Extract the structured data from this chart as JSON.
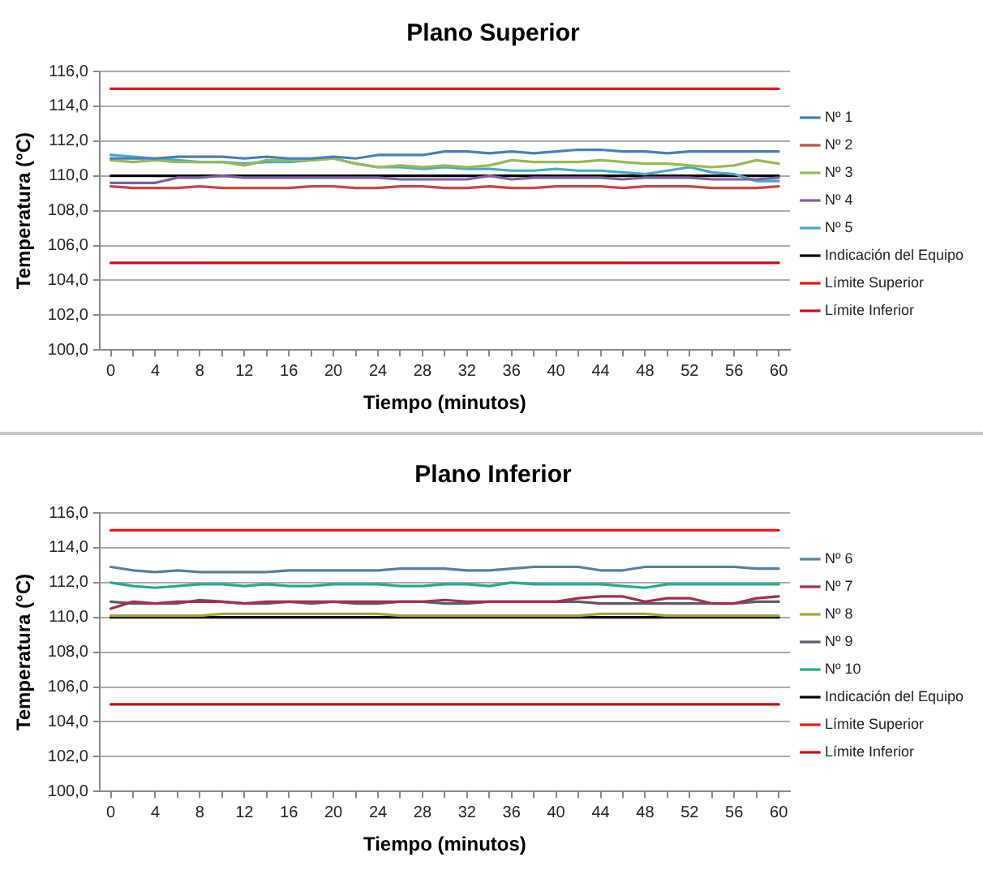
{
  "chart_data": [
    {
      "type": "line",
      "title": "Plano Superior",
      "xlabel": "Tiempo (minutos)",
      "ylabel": "Temperatura (°C)",
      "x": [
        0,
        2,
        4,
        6,
        8,
        10,
        12,
        14,
        16,
        18,
        20,
        22,
        24,
        26,
        28,
        30,
        32,
        34,
        36,
        38,
        40,
        42,
        44,
        46,
        48,
        50,
        52,
        54,
        56,
        58,
        60
      ],
      "xlim": [
        -1,
        61
      ],
      "xticks": [
        0,
        {
          "value": 2,
          "label": null
        },
        4,
        {
          "value": 6,
          "label": null
        },
        8,
        {
          "value": 10,
          "label": null
        },
        12,
        {
          "value": 14,
          "label": null
        },
        16,
        {
          "value": 18,
          "label": null
        },
        20,
        {
          "value": 22,
          "label": null
        },
        24,
        {
          "value": 26,
          "label": null
        },
        28,
        {
          "value": 30,
          "label": null
        },
        32,
        {
          "value": 34,
          "label": null
        },
        36,
        {
          "value": 38,
          "label": null
        },
        40,
        {
          "value": 42,
          "label": null
        },
        44,
        {
          "value": 46,
          "label": null
        },
        48,
        {
          "value": 50,
          "label": null
        },
        52,
        {
          "value": 54,
          "label": null
        },
        56,
        {
          "value": 58,
          "label": null
        },
        60
      ],
      "ylim": [
        100,
        116
      ],
      "yticks": [
        {
          "value": 100,
          "label": "100,0"
        },
        {
          "value": 102,
          "label": "102,0"
        },
        {
          "value": 104,
          "label": "104,0"
        },
        {
          "value": 106,
          "label": "106,0"
        },
        {
          "value": 108,
          "label": "108,0"
        },
        {
          "value": 110,
          "label": "110,0"
        },
        {
          "value": 112,
          "label": "112,0"
        },
        {
          "value": 114,
          "label": "114,0"
        },
        {
          "value": 116,
          "label": "116,0"
        }
      ],
      "grid": "y",
      "legend": "right",
      "marker": "none",
      "line_style": "solid",
      "series": [
        {
          "name": "Nº 1",
          "color": "#4a7ebb",
          "values": [
            111.0,
            111.0,
            111.0,
            111.1,
            111.1,
            111.1,
            111.0,
            111.1,
            111.0,
            111.0,
            111.1,
            111.0,
            111.2,
            111.2,
            111.2,
            111.4,
            111.4,
            111.3,
            111.4,
            111.3,
            111.4,
            111.5,
            111.5,
            111.4,
            111.4,
            111.3,
            111.4,
            111.4,
            111.4,
            111.4,
            111.4
          ]
        },
        {
          "name": "Nº 2",
          "color": "#be4b48",
          "values": [
            109.4,
            109.3,
            109.3,
            109.3,
            109.4,
            109.3,
            109.3,
            109.3,
            109.3,
            109.4,
            109.4,
            109.3,
            109.3,
            109.4,
            109.4,
            109.3,
            109.3,
            109.4,
            109.3,
            109.3,
            109.4,
            109.4,
            109.4,
            109.3,
            109.4,
            109.4,
            109.4,
            109.3,
            109.3,
            109.3,
            109.4
          ]
        },
        {
          "name": "Nº 3",
          "color": "#98b954",
          "values": [
            110.9,
            110.8,
            110.9,
            110.8,
            110.8,
            110.8,
            110.6,
            110.9,
            110.9,
            110.9,
            111.0,
            110.7,
            110.5,
            110.6,
            110.5,
            110.6,
            110.5,
            110.6,
            110.9,
            110.8,
            110.8,
            110.8,
            110.9,
            110.8,
            110.7,
            110.7,
            110.6,
            110.5,
            110.6,
            110.9,
            110.7
          ]
        },
        {
          "name": "Nº 4",
          "color": "#7d60a0",
          "values": [
            109.6,
            109.6,
            109.6,
            109.9,
            109.9,
            110.0,
            109.9,
            109.9,
            109.9,
            109.9,
            109.9,
            109.9,
            109.9,
            109.8,
            109.8,
            109.8,
            109.8,
            110.0,
            109.8,
            109.9,
            109.9,
            109.9,
            109.9,
            109.8,
            109.9,
            109.9,
            109.9,
            109.8,
            109.8,
            109.8,
            109.9
          ]
        },
        {
          "name": "Nº 5",
          "color": "#46aac5",
          "values": [
            111.2,
            111.1,
            111.0,
            110.9,
            110.8,
            110.8,
            110.7,
            110.8,
            110.8,
            110.9,
            111.0,
            110.7,
            110.5,
            110.5,
            110.4,
            110.5,
            110.4,
            110.4,
            110.3,
            110.3,
            110.4,
            110.3,
            110.3,
            110.2,
            110.1,
            110.3,
            110.5,
            110.2,
            110.1,
            109.7,
            109.7
          ]
        },
        {
          "name": "Indicación del Equipo",
          "color": "#000000",
          "values": [
            110,
            110,
            110,
            110,
            110,
            110,
            110,
            110,
            110,
            110,
            110,
            110,
            110,
            110,
            110,
            110,
            110,
            110,
            110,
            110,
            110,
            110,
            110,
            110,
            110,
            110,
            110,
            110,
            110,
            110,
            110
          ]
        },
        {
          "name": "Límite Superior",
          "color": "#e31a1c",
          "values": [
            115,
            115,
            115,
            115,
            115,
            115,
            115,
            115,
            115,
            115,
            115,
            115,
            115,
            115,
            115,
            115,
            115,
            115,
            115,
            115,
            115,
            115,
            115,
            115,
            115,
            115,
            115,
            115,
            115,
            115,
            115
          ]
        },
        {
          "name": "Límite Inferior",
          "color": "#c0101a",
          "values": [
            105,
            105,
            105,
            105,
            105,
            105,
            105,
            105,
            105,
            105,
            105,
            105,
            105,
            105,
            105,
            105,
            105,
            105,
            105,
            105,
            105,
            105,
            105,
            105,
            105,
            105,
            105,
            105,
            105,
            105,
            105
          ]
        }
      ]
    },
    {
      "type": "line",
      "title": "Plano Inferior",
      "xlabel": "Tiempo (minutos)",
      "ylabel": "Temperatura (°C)",
      "x": [
        0,
        2,
        4,
        6,
        8,
        10,
        12,
        14,
        16,
        18,
        20,
        22,
        24,
        26,
        28,
        30,
        32,
        34,
        36,
        38,
        40,
        42,
        44,
        46,
        48,
        50,
        52,
        54,
        56,
        58,
        60
      ],
      "xlim": [
        -1,
        61
      ],
      "xticks": [
        0,
        {
          "value": 2,
          "label": null
        },
        4,
        {
          "value": 6,
          "label": null
        },
        8,
        {
          "value": 10,
          "label": null
        },
        12,
        {
          "value": 14,
          "label": null
        },
        16,
        {
          "value": 18,
          "label": null
        },
        20,
        {
          "value": 22,
          "label": null
        },
        24,
        {
          "value": 26,
          "label": null
        },
        28,
        {
          "value": 30,
          "label": null
        },
        32,
        {
          "value": 34,
          "label": null
        },
        36,
        {
          "value": 38,
          "label": null
        },
        40,
        {
          "value": 42,
          "label": null
        },
        44,
        {
          "value": 46,
          "label": null
        },
        48,
        {
          "value": 50,
          "label": null
        },
        52,
        {
          "value": 54,
          "label": null
        },
        56,
        {
          "value": 58,
          "label": null
        },
        60
      ],
      "ylim": [
        100,
        116
      ],
      "yticks": [
        {
          "value": 100,
          "label": "100,0"
        },
        {
          "value": 102,
          "label": "102,0"
        },
        {
          "value": 104,
          "label": "104,0"
        },
        {
          "value": 106,
          "label": "106,0"
        },
        {
          "value": 108,
          "label": "108,0"
        },
        {
          "value": 110,
          "label": "110,0"
        },
        {
          "value": 112,
          "label": "112,0"
        },
        {
          "value": 114,
          "label": "114,0"
        },
        {
          "value": 116,
          "label": "116,0"
        }
      ],
      "grid": "y",
      "legend": "right",
      "marker": "none",
      "line_style": "solid",
      "series": [
        {
          "name": "Nº 6",
          "color": "#5a7f9c",
          "values": [
            112.9,
            112.7,
            112.6,
            112.7,
            112.6,
            112.6,
            112.6,
            112.6,
            112.7,
            112.7,
            112.7,
            112.7,
            112.7,
            112.8,
            112.8,
            112.8,
            112.7,
            112.7,
            112.8,
            112.9,
            112.9,
            112.9,
            112.7,
            112.7,
            112.9,
            112.9,
            112.9,
            112.9,
            112.9,
            112.8,
            112.8
          ]
        },
        {
          "name": "Nº 7",
          "color": "#a0324a",
          "values": [
            110.5,
            110.9,
            110.8,
            110.9,
            110.9,
            110.9,
            110.8,
            110.9,
            110.9,
            110.9,
            110.9,
            110.9,
            110.9,
            110.9,
            110.9,
            111.0,
            110.9,
            110.9,
            110.9,
            110.9,
            110.9,
            111.1,
            111.2,
            111.2,
            110.9,
            111.1,
            111.1,
            110.8,
            110.8,
            111.1,
            111.2
          ]
        },
        {
          "name": "Nº 8",
          "color": "#a5a53c",
          "values": [
            110.1,
            110.1,
            110.1,
            110.1,
            110.1,
            110.2,
            110.2,
            110.2,
            110.2,
            110.2,
            110.2,
            110.2,
            110.2,
            110.1,
            110.1,
            110.1,
            110.1,
            110.1,
            110.1,
            110.1,
            110.1,
            110.1,
            110.2,
            110.2,
            110.2,
            110.1,
            110.1,
            110.1,
            110.1,
            110.1,
            110.1
          ]
        },
        {
          "name": "Nº 9",
          "color": "#5e5a6e",
          "values": [
            110.9,
            110.8,
            110.8,
            110.8,
            111.0,
            110.9,
            110.8,
            110.8,
            110.9,
            110.8,
            110.9,
            110.8,
            110.8,
            110.9,
            110.9,
            110.8,
            110.8,
            110.9,
            110.9,
            110.9,
            110.9,
            110.9,
            110.8,
            110.8,
            110.8,
            110.8,
            110.8,
            110.8,
            110.8,
            110.9,
            110.9
          ]
        },
        {
          "name": "Nº 10",
          "color": "#2aa88a",
          "values": [
            112.0,
            111.8,
            111.7,
            111.8,
            111.9,
            111.9,
            111.8,
            111.9,
            111.8,
            111.8,
            111.9,
            111.9,
            111.9,
            111.8,
            111.8,
            111.9,
            111.9,
            111.8,
            112.0,
            111.9,
            111.9,
            111.9,
            111.9,
            111.8,
            111.7,
            111.9,
            111.9,
            111.9,
            111.9,
            111.9,
            111.9
          ]
        },
        {
          "name": "Indicación del Equipo",
          "color": "#000000",
          "values": [
            110,
            110,
            110,
            110,
            110,
            110,
            110,
            110,
            110,
            110,
            110,
            110,
            110,
            110,
            110,
            110,
            110,
            110,
            110,
            110,
            110,
            110,
            110,
            110,
            110,
            110,
            110,
            110,
            110,
            110,
            110
          ]
        },
        {
          "name": "Límite Superior",
          "color": "#e31a1c",
          "values": [
            115,
            115,
            115,
            115,
            115,
            115,
            115,
            115,
            115,
            115,
            115,
            115,
            115,
            115,
            115,
            115,
            115,
            115,
            115,
            115,
            115,
            115,
            115,
            115,
            115,
            115,
            115,
            115,
            115,
            115,
            115
          ]
        },
        {
          "name": "Límite Inferior",
          "color": "#c0101a",
          "values": [
            105,
            105,
            105,
            105,
            105,
            105,
            105,
            105,
            105,
            105,
            105,
            105,
            105,
            105,
            105,
            105,
            105,
            105,
            105,
            105,
            105,
            105,
            105,
            105,
            105,
            105,
            105,
            105,
            105,
            105,
            105
          ]
        }
      ]
    }
  ]
}
